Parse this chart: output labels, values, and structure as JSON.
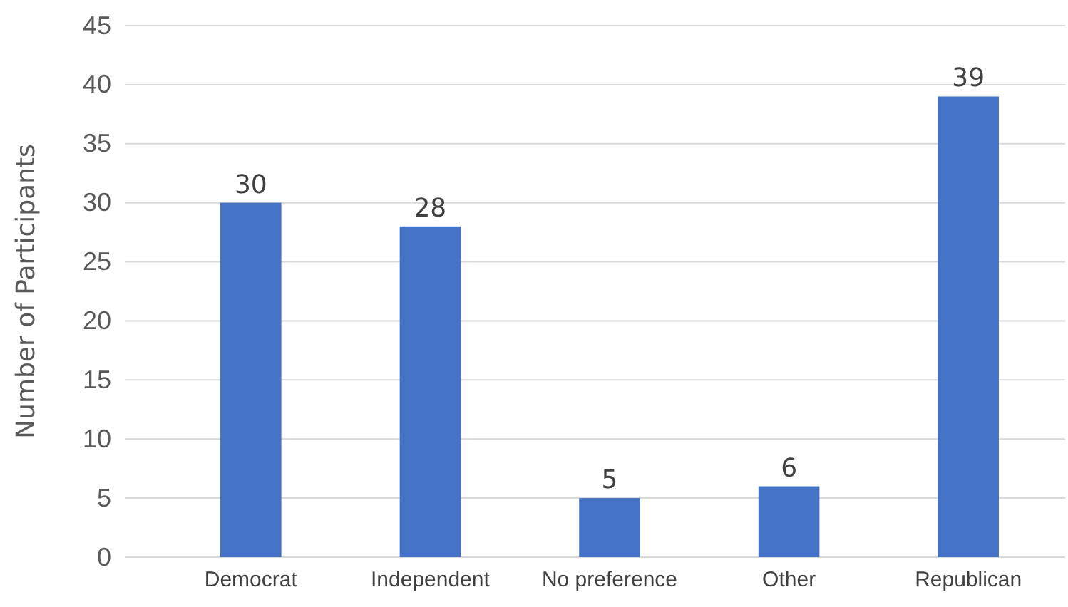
{
  "chart_data": {
    "type": "bar",
    "ylabel": "Number of Participants",
    "categories": [
      "Democrat",
      "Independent",
      "No preference",
      "Other",
      "Republican"
    ],
    "values": [
      30,
      28,
      5,
      6,
      39
    ],
    "color": "#4472c4",
    "data_labels": true,
    "ylim": [
      0,
      45
    ],
    "yticks": [
      0,
      5,
      10,
      15,
      20,
      25,
      30,
      35,
      40,
      45
    ],
    "grid": "y"
  }
}
